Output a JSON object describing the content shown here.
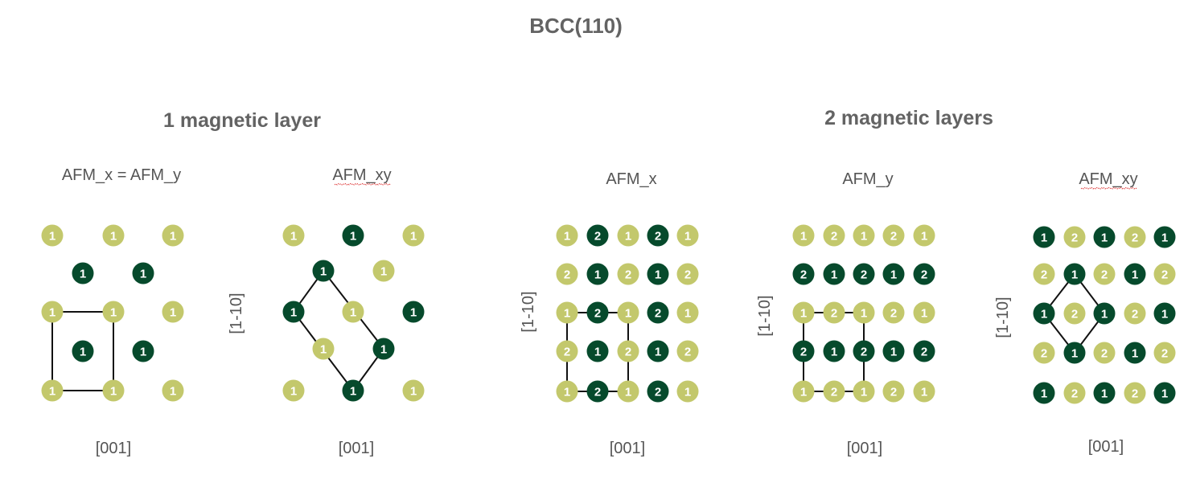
{
  "title": "BCC(110)",
  "group_titles": [
    "1 magnetic layer",
    "2 magnetic layers"
  ],
  "panels": [
    {
      "label": "AFM_x = AFM_y",
      "xaxis": "[001]",
      "yaxis": "",
      "atoms": [
        {
          "r": 0,
          "c": 0,
          "n": "1",
          "s": "light"
        },
        {
          "r": 0,
          "c": 2,
          "n": "1",
          "s": "light"
        },
        {
          "r": 0,
          "c": 4,
          "n": "1",
          "s": "light"
        },
        {
          "r": 1,
          "c": 1,
          "n": "1",
          "s": "dark"
        },
        {
          "r": 1,
          "c": 3,
          "n": "1",
          "s": "dark"
        },
        {
          "r": 2,
          "c": 0,
          "n": "1",
          "s": "light"
        },
        {
          "r": 2,
          "c": 2,
          "n": "1",
          "s": "light"
        },
        {
          "r": 2,
          "c": 4,
          "n": "1",
          "s": "light"
        },
        {
          "r": 3,
          "c": 1,
          "n": "1",
          "s": "dark"
        },
        {
          "r": 3,
          "c": 3,
          "n": "1",
          "s": "dark"
        },
        {
          "r": 4,
          "c": 0,
          "n": "1",
          "s": "light"
        },
        {
          "r": 4,
          "c": 2,
          "n": "1",
          "s": "light"
        },
        {
          "r": 4,
          "c": 4,
          "n": "1",
          "s": "light"
        }
      ],
      "cell": [
        [
          2,
          0
        ],
        [
          2,
          2
        ],
        [
          4,
          2
        ],
        [
          4,
          0
        ]
      ]
    },
    {
      "label": "AFM_xy",
      "xaxis": "[001]",
      "yaxis": "[1-10]",
      "atoms": [
        {
          "r": 0,
          "c": 0,
          "n": "1",
          "s": "light"
        },
        {
          "r": 0,
          "c": 2,
          "n": "1",
          "s": "dark"
        },
        {
          "r": 0,
          "c": 4,
          "n": "1",
          "s": "light"
        },
        {
          "r": 1,
          "c": 1,
          "n": "1",
          "s": "dark"
        },
        {
          "r": 1,
          "c": 3,
          "n": "1",
          "s": "light"
        },
        {
          "r": 2,
          "c": 0,
          "n": "1",
          "s": "dark"
        },
        {
          "r": 2,
          "c": 2,
          "n": "1",
          "s": "light"
        },
        {
          "r": 2,
          "c": 4,
          "n": "1",
          "s": "dark"
        },
        {
          "r": 3,
          "c": 1,
          "n": "1",
          "s": "light"
        },
        {
          "r": 3,
          "c": 3,
          "n": "1",
          "s": "dark"
        },
        {
          "r": 4,
          "c": 0,
          "n": "1",
          "s": "light"
        },
        {
          "r": 4,
          "c": 2,
          "n": "1",
          "s": "dark"
        },
        {
          "r": 4,
          "c": 4,
          "n": "1",
          "s": "light"
        }
      ],
      "cell": [
        [
          1,
          1
        ],
        [
          3,
          3
        ],
        [
          4,
          2
        ],
        [
          2,
          0
        ]
      ]
    },
    {
      "label": "AFM_x",
      "xaxis": "[001]",
      "yaxis": "[1-10]",
      "grid": [
        [
          "1",
          "2",
          "1",
          "2",
          "1"
        ],
        [
          "2",
          "1",
          "2",
          "1",
          "2"
        ],
        [
          "1",
          "2",
          "1",
          "2",
          "1"
        ],
        [
          "2",
          "1",
          "2",
          "1",
          "2"
        ],
        [
          "1",
          "2",
          "1",
          "2",
          "1"
        ]
      ],
      "shade": [
        [
          "light",
          "dark",
          "light",
          "dark",
          "light"
        ],
        [
          "light",
          "dark",
          "light",
          "dark",
          "light"
        ],
        [
          "light",
          "dark",
          "light",
          "dark",
          "light"
        ],
        [
          "light",
          "dark",
          "light",
          "dark",
          "light"
        ],
        [
          "light",
          "dark",
          "light",
          "dark",
          "light"
        ]
      ],
      "cell": [
        [
          2,
          0
        ],
        [
          2,
          2
        ],
        [
          4,
          2
        ],
        [
          4,
          0
        ]
      ]
    },
    {
      "label": "AFM_y",
      "xaxis": "[001]",
      "yaxis": "[1-10]",
      "grid": [
        [
          "1",
          "2",
          "1",
          "2",
          "1"
        ],
        [
          "2",
          "1",
          "2",
          "1",
          "2"
        ],
        [
          "1",
          "2",
          "1",
          "2",
          "1"
        ],
        [
          "2",
          "1",
          "2",
          "1",
          "2"
        ],
        [
          "1",
          "2",
          "1",
          "2",
          "1"
        ]
      ],
      "shade": [
        [
          "light",
          "light",
          "light",
          "light",
          "light"
        ],
        [
          "dark",
          "dark",
          "dark",
          "dark",
          "dark"
        ],
        [
          "light",
          "light",
          "light",
          "light",
          "light"
        ],
        [
          "dark",
          "dark",
          "dark",
          "dark",
          "dark"
        ],
        [
          "light",
          "light",
          "light",
          "light",
          "light"
        ]
      ],
      "cell": [
        [
          2,
          0
        ],
        [
          2,
          2
        ],
        [
          4,
          2
        ],
        [
          4,
          0
        ]
      ]
    },
    {
      "label": "AFM_xy",
      "xaxis": "[001]",
      "yaxis": "[1-10]",
      "grid": [
        [
          "1",
          "2",
          "1",
          "2",
          "1"
        ],
        [
          "2",
          "1",
          "2",
          "1",
          "2"
        ],
        [
          "1",
          "2",
          "1",
          "2",
          "1"
        ],
        [
          "2",
          "1",
          "2",
          "1",
          "2"
        ],
        [
          "1",
          "2",
          "1",
          "2",
          "1"
        ]
      ],
      "shade": [
        [
          "dark",
          "light",
          "dark",
          "light",
          "dark"
        ],
        [
          "light",
          "dark",
          "light",
          "dark",
          "light"
        ],
        [
          "dark",
          "light",
          "dark",
          "light",
          "dark"
        ],
        [
          "light",
          "dark",
          "light",
          "dark",
          "light"
        ],
        [
          "dark",
          "light",
          "dark",
          "light",
          "dark"
        ]
      ],
      "cell": [
        [
          1,
          1
        ],
        [
          2,
          2
        ],
        [
          3,
          1
        ],
        [
          2,
          0
        ]
      ]
    }
  ],
  "colors": {
    "light": "#c3c86c",
    "dark": "#064a2c",
    "text": "#555555"
  }
}
